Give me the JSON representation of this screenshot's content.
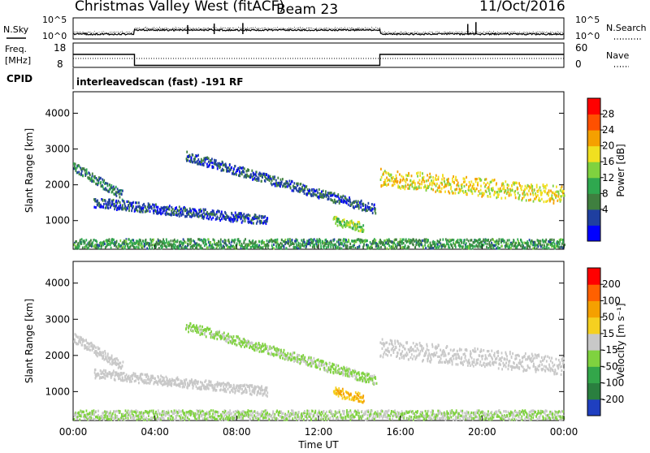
{
  "header": {
    "station": "Christmas Valley West (fitACF)",
    "beam": "Beam 23",
    "date": "11/Oct/2016"
  },
  "noise_panel": {
    "left_label": "N.Sky",
    "left_ticks": [
      "10^5",
      "10^0"
    ],
    "right_label": "N.Search",
    "right_ticks": [
      "10^5",
      "10^0"
    ]
  },
  "freq_panel": {
    "left_label_line1": "Freq.",
    "left_label_line2": "[MHz]",
    "left_ticks": [
      "18",
      "8"
    ],
    "right_label": "Nave",
    "right_ticks": [
      "60",
      "0"
    ]
  },
  "cpid": {
    "label": "CPID",
    "text": "interleavedscan (fast) -191 RF"
  },
  "power_panel": {
    "ylabel": "Slant Range [km]",
    "yticks": [
      "4000",
      "3000",
      "2000",
      "1000"
    ],
    "colorbar_label": "Power [dB]",
    "colorbar_ticks": [
      "28",
      "24",
      "20",
      "16",
      "12",
      "8",
      "4"
    ],
    "colors": [
      "#0000ff",
      "#1f3fa0",
      "#3f7f3f",
      "#2fa84f",
      "#7fd23f",
      "#f0e020",
      "#f5a000",
      "#ff5000",
      "#ff0000"
    ]
  },
  "velocity_panel": {
    "ylabel": "Slant Range [km]",
    "yticks": [
      "4000",
      "3000",
      "2000",
      "1000"
    ],
    "colorbar_label": "Velocity [m s⁻¹]",
    "colorbar_ticks": [
      "200",
      "100",
      "50",
      "15",
      "-15",
      "-50",
      "-100",
      "-200"
    ],
    "colors": [
      "#1f3fc0",
      "#2a7f3f",
      "#33a64a",
      "#7fd23f",
      "#c8c8c8",
      "#f5d020",
      "#f5a000",
      "#ff6000",
      "#ff0000"
    ]
  },
  "x_axis": {
    "title": "Time UT",
    "ticks": [
      "00:00",
      "04:00",
      "08:00",
      "12:00",
      "16:00",
      "20:00",
      "00:00"
    ]
  },
  "chart_data": {
    "type": "heatmap",
    "title": "Christmas Valley West (fitACF) Beam 23 11/Oct/2016",
    "xlabel": "Time UT",
    "ylabel": "Slant Range [km]",
    "xlim": [
      0,
      24
    ],
    "ylim": [
      200,
      4600
    ],
    "frequency_MHz": {
      "x": [
        0,
        3,
        3,
        15,
        15,
        24
      ],
      "y": [
        14,
        14,
        9.5,
        9.5,
        14,
        14
      ]
    },
    "power_scatter_bands": [
      {
        "name": "far early",
        "t_start": 0.0,
        "t_end": 2.4,
        "range_start_km": 2500,
        "range_end_km": 1700,
        "power_dB": 10
      },
      {
        "name": "mid band",
        "t_start": 1.0,
        "t_end": 9.5,
        "range_start_km": 1500,
        "range_end_km": 1000,
        "power_dB": 6
      },
      {
        "name": "arc",
        "t_start": 5.5,
        "t_end": 14.8,
        "range_start_km": 2800,
        "range_end_km": 1300,
        "power_dB": 7
      },
      {
        "name": "near echo",
        "t_start": 12.7,
        "t_end": 14.2,
        "range_start_km": 1000,
        "range_end_km": 800,
        "power_dB": 18
      },
      {
        "name": "strong band",
        "t_start": 15.0,
        "t_end": 24.0,
        "range_start_km": 2200,
        "range_end_km": 1700,
        "power_dB": 22
      },
      {
        "name": "ground echo",
        "t_start": 0.0,
        "t_end": 24.0,
        "range_start_km": 350,
        "range_end_km": 350,
        "power_dB": 12
      }
    ],
    "velocity_scatter_bands": [
      {
        "name": "far early",
        "t_start": 0.0,
        "t_end": 2.4,
        "velocity_ms": 0
      },
      {
        "name": "mid band",
        "t_start": 1.0,
        "t_end": 9.5,
        "velocity_ms": 0
      },
      {
        "name": "arc",
        "t_start": 5.5,
        "t_end": 14.8,
        "velocity_ms": 20
      },
      {
        "name": "near echo",
        "t_start": 12.7,
        "t_end": 14.2,
        "velocity_ms": -50
      },
      {
        "name": "strong band",
        "t_start": 15.0,
        "t_end": 24.0,
        "velocity_ms": 0
      },
      {
        "name": "ground echo",
        "t_start": 0.0,
        "t_end": 24.0,
        "velocity_ms": 15
      }
    ]
  }
}
